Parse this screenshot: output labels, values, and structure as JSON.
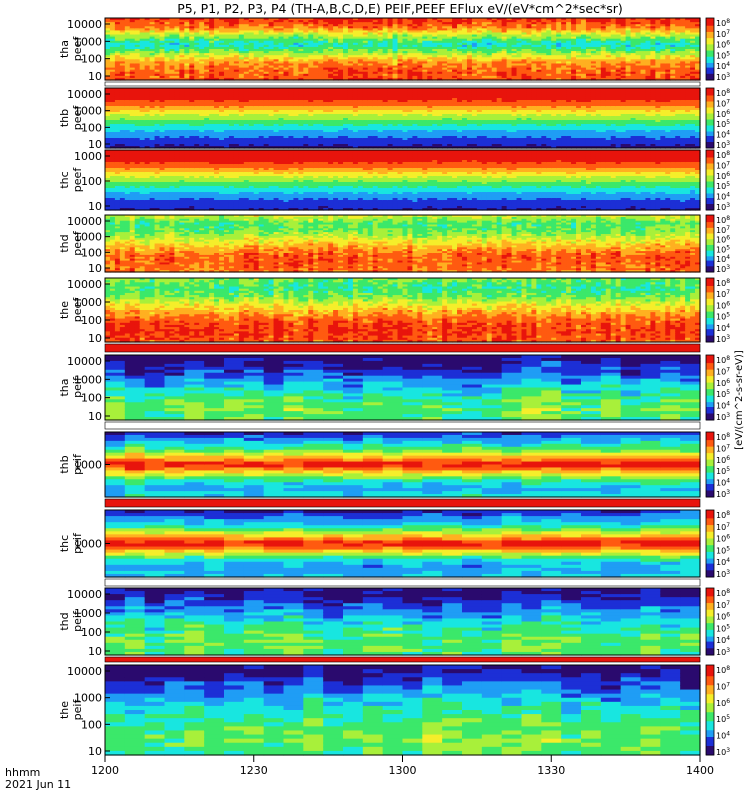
{
  "chart_data": {
    "type": "heatmap",
    "title": "P5, P1, P2, P3, P4 (TH-A,B,C,D,E) PEIF,PEEF EFlux eV/(eV*cm^2*sec*sr)",
    "x_label": "hhmm",
    "date_label": "2021 Jun 11",
    "x_range": [
      "12:00",
      "14:00"
    ],
    "x_ticks": [
      "1200",
      "1230",
      "1300",
      "1330",
      "1400"
    ],
    "y_scale": "log",
    "colorbar_label": "[eV/(cm^2-s-sr-eV)]",
    "colormap": [
      "#2a0a6e",
      "#1c2fd6",
      "#1f9df5",
      "#18e6e0",
      "#3be86a",
      "#a8f03a",
      "#f5ee2a",
      "#ffb020",
      "#ff5a10",
      "#e8140c"
    ],
    "panels": [
      {
        "probe": "tha",
        "product": "peef",
        "y_ticks": [
          "10",
          "100",
          "1000",
          "10000"
        ],
        "cbar_ticks": [
          "10^3",
          "10^4",
          "10^5",
          "10^6",
          "10^7",
          "10^8"
        ],
        "profile": [
          0.92,
          0.82,
          0.55,
          0.35,
          0.55,
          0.78,
          0.85,
          0.88
        ],
        "variability": 0.12
      },
      {
        "probe": "thb",
        "product": "peef",
        "y_ticks": [
          "10",
          "100",
          "1000",
          "10000"
        ],
        "cbar_ticks": [
          "10^3",
          "10^4",
          "10^5",
          "10^6",
          "10^7",
          "10^8"
        ],
        "profile": [
          0.98,
          0.95,
          0.82,
          0.62,
          0.45,
          0.3,
          0.18,
          0.08
        ],
        "variability": 0.03
      },
      {
        "probe": "thc",
        "product": "peef",
        "y_ticks": [
          "10",
          "100",
          "1000"
        ],
        "cbar_ticks": [
          "10^3",
          "10^4",
          "10^5",
          "10^6",
          "10^7",
          "10^8"
        ],
        "profile": [
          0.98,
          0.95,
          0.82,
          0.62,
          0.45,
          0.3,
          0.18,
          0.1
        ],
        "variability": 0.03
      },
      {
        "probe": "thd",
        "product": "peef",
        "y_ticks": [
          "10",
          "100",
          "1000",
          "10000"
        ],
        "cbar_ticks": [
          "10^3",
          "10^4",
          "10^5",
          "10^6",
          "10^7",
          "10^8"
        ],
        "profile": [
          0.6,
          0.45,
          0.5,
          0.62,
          0.75,
          0.85,
          0.85,
          0.82
        ],
        "variability": 0.12
      },
      {
        "probe": "the",
        "product": "peef",
        "y_ticks": [
          "10",
          "100",
          "1000",
          "10000"
        ],
        "cbar_ticks": [
          "10^3",
          "10^4",
          "10^5",
          "10^6",
          "10^7",
          "10^8"
        ],
        "profile": [
          0.5,
          0.42,
          0.5,
          0.65,
          0.78,
          0.88,
          0.9,
          0.86
        ],
        "variability": 0.12
      },
      {
        "probe": "tha",
        "product": "peif",
        "y_ticks": [
          "10",
          "100",
          "1000",
          "10000"
        ],
        "cbar_ticks": [
          "10^3",
          "10^4",
          "10^5",
          "10^6",
          "10^7",
          "10^8"
        ],
        "profile": [
          0.02,
          0.1,
          0.18,
          0.28,
          0.38,
          0.46,
          0.5,
          0.46
        ],
        "variability": 0.15
      },
      {
        "probe": "thb",
        "product": "peif",
        "y_ticks": [
          "1000"
        ],
        "cbar_ticks": [
          "10^3",
          "10^4",
          "10^5",
          "10^6",
          "10^7",
          "10^8"
        ],
        "profile": [
          0.15,
          0.3,
          0.45,
          0.72,
          0.98,
          0.72,
          0.42,
          0.28,
          0.35
        ],
        "variability": 0.1
      },
      {
        "probe": "thc",
        "product": "peif",
        "y_ticks": [
          "1000"
        ],
        "cbar_ticks": [
          "10^3",
          "10^4",
          "10^5",
          "10^6",
          "10^7",
          "10^8"
        ],
        "profile": [
          0.12,
          0.25,
          0.4,
          0.7,
          0.98,
          0.7,
          0.35,
          0.25,
          0.3
        ],
        "variability": 0.1
      },
      {
        "probe": "thd",
        "product": "peif",
        "y_ticks": [
          "10",
          "100",
          "1000",
          "10000"
        ],
        "cbar_ticks": [
          "10^3",
          "10^4",
          "10^5",
          "10^6",
          "10^7",
          "10^8"
        ],
        "profile": [
          0.05,
          0.12,
          0.2,
          0.3,
          0.38,
          0.45,
          0.48,
          0.44
        ],
        "variability": 0.14
      },
      {
        "probe": "the",
        "product": "peif",
        "y_ticks": [
          "10",
          "100",
          "1000",
          "10000"
        ],
        "cbar_ticks": [
          "10^3",
          "10^4",
          "10^5",
          "10^6",
          "10^7",
          "10^8"
        ],
        "profile": [
          0.05,
          0.14,
          0.24,
          0.34,
          0.42,
          0.48,
          0.5,
          0.46
        ],
        "variability": 0.14
      }
    ]
  }
}
